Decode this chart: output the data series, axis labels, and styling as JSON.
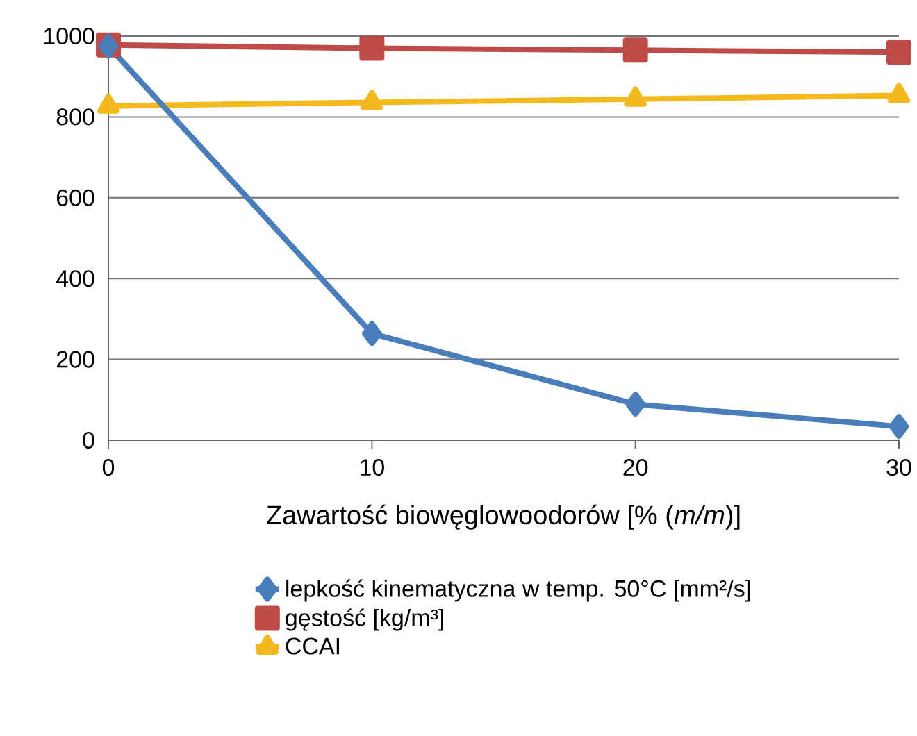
{
  "chart_data": {
    "type": "line",
    "xlabel": "Zawartość biowęglowoodorów [% (*m/m*)]",
    "x": [
      0,
      10,
      20,
      30
    ],
    "series": [
      {
        "name": "lepkość kinematyczna w temp. 50°C [mm²/s]",
        "color": "#4a7ebb",
        "marker": "diamond",
        "values": [
          975,
          264,
          89,
          34
        ]
      },
      {
        "name": "gęstość [kg/m³]",
        "color": "#be4b48",
        "marker": "square",
        "values": [
          978,
          970,
          965,
          960
        ]
      },
      {
        "name": "CCAI",
        "color": "#f5b920",
        "marker": "triangle",
        "values": [
          827,
          836,
          844,
          853
        ]
      }
    ],
    "xlim": [
      0,
      30
    ],
    "xticks": [
      0,
      10,
      20,
      30
    ],
    "ylim": [
      0,
      1000
    ],
    "yticks": [
      0,
      200,
      400,
      600,
      800,
      1000
    ],
    "grid": "y",
    "legend": "bottom"
  }
}
